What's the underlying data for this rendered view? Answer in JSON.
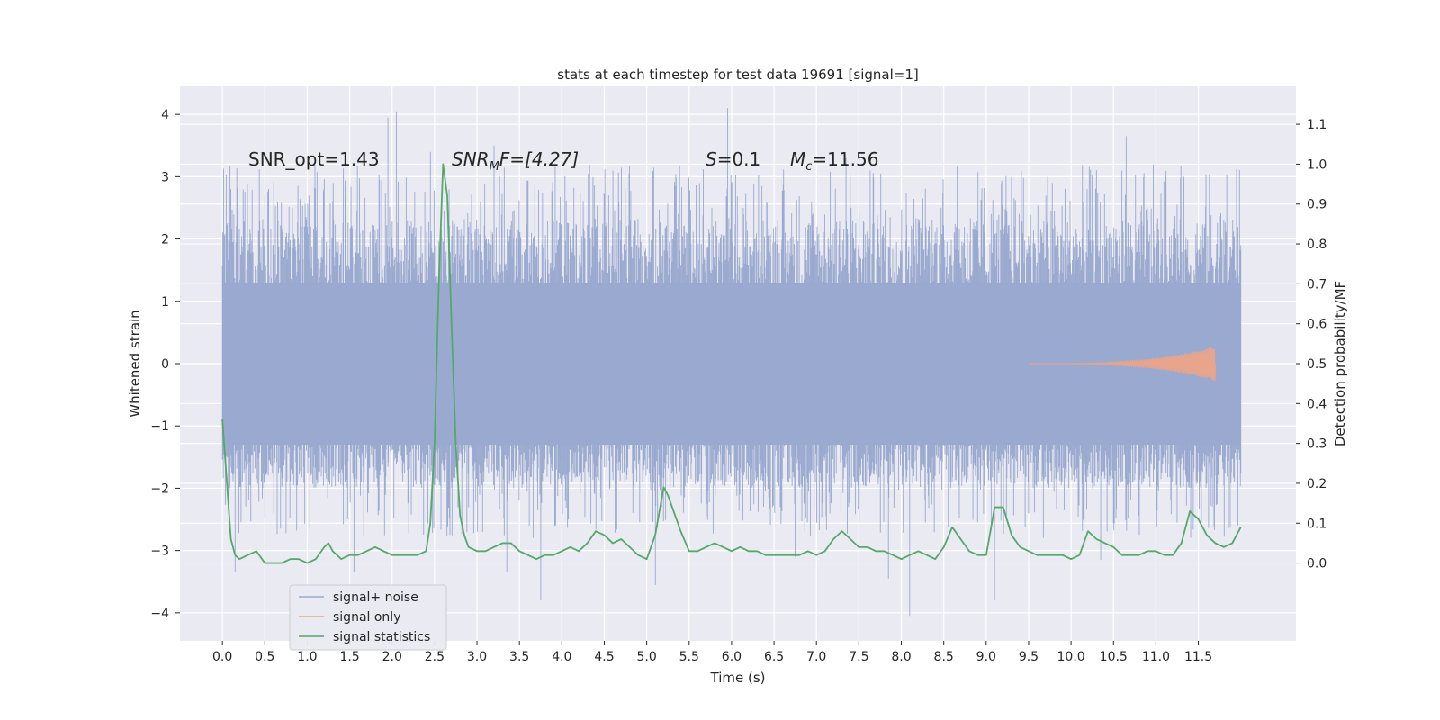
{
  "chart_data": {
    "type": "line",
    "title": "stats at each timestep for test data 19691 [signal=1]",
    "xlabel": "Time (s)",
    "ylabel": "Whitened strain",
    "y2label": "Detection probability/MF",
    "xlim": [
      -0.5,
      12.65
    ],
    "ylim": [
      -4.45,
      4.45
    ],
    "y2lim": [
      -0.195,
      1.195
    ],
    "x_ticks": [
      0.0,
      0.5,
      1.0,
      1.5,
      2.0,
      2.5,
      3.0,
      3.5,
      4.0,
      4.5,
      5.0,
      5.5,
      6.0,
      6.5,
      7.0,
      7.5,
      8.0,
      8.5,
      9.0,
      9.5,
      10.0,
      10.5,
      11.0,
      11.5
    ],
    "x_tick_labels": [
      "0.0",
      "0.5",
      "1.0",
      "1.5",
      "2.0",
      "2.5",
      "3.0",
      "3.5",
      "4.0",
      "4.5",
      "5.0",
      "5.5",
      "6.0",
      "6.5",
      "7.0",
      "7.5",
      "8.0",
      "8.5",
      "9.0",
      "9.5",
      "10.0",
      "10.5",
      "11.0",
      "11.5"
    ],
    "y_ticks": [
      4,
      3,
      2,
      1,
      0,
      -1,
      -2,
      -3,
      -4
    ],
    "y_tick_labels": [
      "4",
      "3",
      "2",
      "1",
      "0",
      "−1",
      "−2",
      "−3",
      "−4"
    ],
    "y2_ticks": [
      1.1,
      1.0,
      0.9,
      0.8,
      0.7,
      0.6,
      0.5,
      0.4,
      0.3,
      0.2,
      0.1,
      0.0
    ],
    "y2_tick_labels": [
      "1.1",
      "1.0",
      "0.9",
      "0.8",
      "0.7",
      "0.6",
      "0.5",
      "0.4",
      "0.3",
      "0.2",
      "0.1",
      "0.0"
    ],
    "grid": true,
    "legend_position": "lower-left",
    "annotations": {
      "snr_opt": "SNR_opt=1.43",
      "snr_mf_base": "SNR",
      "snr_mf_sub": "M",
      "snr_mf_rest": "F=[4.27]",
      "s_base": "S",
      "s_rest": "=0.1",
      "mc_base": "M",
      "mc_sub": "c",
      "mc_rest": "=11.56"
    },
    "series": [
      {
        "name": "signal+ noise",
        "color": "#9aa9cf",
        "axis": "left",
        "x_range": [
          0.0,
          12.0
        ],
        "envelope": {
          "upper": 1.3,
          "lower": -1.3,
          "spike_max": 4.1,
          "spike_min": -4.1,
          "peaks_high": [
            [
              1.95,
              3.95
            ],
            [
              2.05,
              4.05
            ],
            [
              5.95,
              4.1
            ],
            [
              2.45,
              3.4
            ],
            [
              3.2,
              3.5
            ],
            [
              7.35,
              3.3
            ],
            [
              10.65,
              3.65
            ],
            [
              11.85,
              3.3
            ],
            [
              0.5,
              2.7
            ],
            [
              4.55,
              2.7
            ]
          ],
          "peaks_low": [
            [
              3.75,
              -3.8
            ],
            [
              5.1,
              -3.55
            ],
            [
              8.1,
              -4.05
            ],
            [
              9.1,
              -3.8
            ],
            [
              0.15,
              -3.35
            ],
            [
              7.85,
              -3.45
            ],
            [
              3.35,
              -3.35
            ],
            [
              1.55,
              -3.35
            ],
            [
              6.75,
              -3.1
            ],
            [
              10.35,
              -3.15
            ]
          ]
        }
      },
      {
        "name": "signal only",
        "color": "#e8a58b",
        "axis": "left",
        "x_range": [
          9.5,
          11.7
        ],
        "amplitude_end": 0.28
      },
      {
        "name": "signal statistics",
        "color": "#55a868",
        "axis": "right",
        "x": [
          0.0,
          0.1,
          0.15,
          0.2,
          0.3,
          0.4,
          0.5,
          0.6,
          0.7,
          0.8,
          0.9,
          1.0,
          1.1,
          1.2,
          1.25,
          1.3,
          1.4,
          1.5,
          1.6,
          1.7,
          1.8,
          1.9,
          2.0,
          2.1,
          2.2,
          2.3,
          2.4,
          2.45,
          2.5,
          2.55,
          2.6,
          2.65,
          2.7,
          2.75,
          2.8,
          2.85,
          2.9,
          3.0,
          3.1,
          3.2,
          3.3,
          3.4,
          3.5,
          3.6,
          3.7,
          3.8,
          3.9,
          4.0,
          4.1,
          4.2,
          4.3,
          4.4,
          4.5,
          4.6,
          4.7,
          4.8,
          4.9,
          5.0,
          5.1,
          5.2,
          5.25,
          5.3,
          5.4,
          5.5,
          5.6,
          5.7,
          5.8,
          5.9,
          6.0,
          6.1,
          6.2,
          6.3,
          6.4,
          6.5,
          6.6,
          6.7,
          6.8,
          6.9,
          7.0,
          7.1,
          7.2,
          7.3,
          7.4,
          7.5,
          7.6,
          7.7,
          7.8,
          7.9,
          8.0,
          8.1,
          8.2,
          8.3,
          8.4,
          8.5,
          8.6,
          8.7,
          8.8,
          8.9,
          9.0,
          9.1,
          9.2,
          9.3,
          9.4,
          9.5,
          9.6,
          9.7,
          9.8,
          9.9,
          10.0,
          10.1,
          10.2,
          10.3,
          10.4,
          10.5,
          10.6,
          10.7,
          10.8,
          10.9,
          11.0,
          11.1,
          11.2,
          11.3,
          11.4,
          11.5,
          11.6,
          11.7,
          11.8,
          11.9,
          12.0
        ],
        "values": [
          0.36,
          0.06,
          0.02,
          0.01,
          0.02,
          0.03,
          0.0,
          0.0,
          0.0,
          0.01,
          0.01,
          0.0,
          0.01,
          0.04,
          0.05,
          0.03,
          0.01,
          0.02,
          0.02,
          0.03,
          0.04,
          0.03,
          0.02,
          0.02,
          0.02,
          0.02,
          0.03,
          0.1,
          0.3,
          0.7,
          1.0,
          0.92,
          0.6,
          0.3,
          0.12,
          0.07,
          0.04,
          0.03,
          0.03,
          0.04,
          0.05,
          0.05,
          0.03,
          0.02,
          0.01,
          0.02,
          0.02,
          0.03,
          0.04,
          0.03,
          0.05,
          0.08,
          0.07,
          0.05,
          0.06,
          0.04,
          0.02,
          0.01,
          0.07,
          0.19,
          0.17,
          0.14,
          0.08,
          0.03,
          0.03,
          0.04,
          0.05,
          0.04,
          0.03,
          0.04,
          0.03,
          0.03,
          0.02,
          0.02,
          0.02,
          0.02,
          0.02,
          0.03,
          0.02,
          0.03,
          0.06,
          0.08,
          0.06,
          0.04,
          0.04,
          0.03,
          0.03,
          0.02,
          0.01,
          0.02,
          0.03,
          0.02,
          0.01,
          0.04,
          0.09,
          0.06,
          0.03,
          0.02,
          0.02,
          0.14,
          0.14,
          0.07,
          0.04,
          0.03,
          0.02,
          0.02,
          0.02,
          0.02,
          0.01,
          0.02,
          0.08,
          0.06,
          0.05,
          0.04,
          0.02,
          0.02,
          0.02,
          0.03,
          0.03,
          0.02,
          0.02,
          0.05,
          0.13,
          0.11,
          0.07,
          0.05,
          0.04,
          0.05,
          0.09
        ]
      }
    ]
  }
}
